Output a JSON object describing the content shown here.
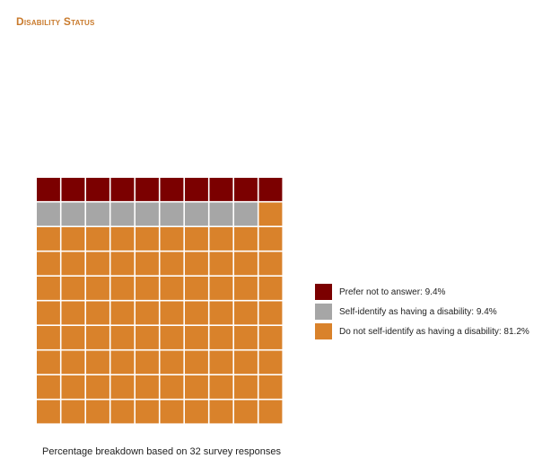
{
  "title": "Disability Status",
  "footnote": "Percentage breakdown based on 32 survey responses",
  "chart_data": {
    "type": "waffle",
    "grid": [
      10,
      10
    ],
    "categories": [
      {
        "name": "Prefer not to answer",
        "value": 9.4,
        "cells": 10,
        "color": "#7b0000",
        "label": "Prefer not to answer: 9.4%"
      },
      {
        "name": "Self-identify as having a disability",
        "value": 9.4,
        "cells": 9,
        "color": "#a6a6a6",
        "label": "Self-identify as having a disability: 9.4%"
      },
      {
        "name": "Do not self-identify as having a disability",
        "value": 81.2,
        "cells": 81,
        "color": "#d9822b",
        "label": "Do not self-identify as having a disability: 81.2%"
      }
    ],
    "fill_order": [
      "Prefer not to answer",
      "Self-identify as having a disability",
      "Do not self-identify as having a disability"
    ],
    "legend_position": "right"
  }
}
